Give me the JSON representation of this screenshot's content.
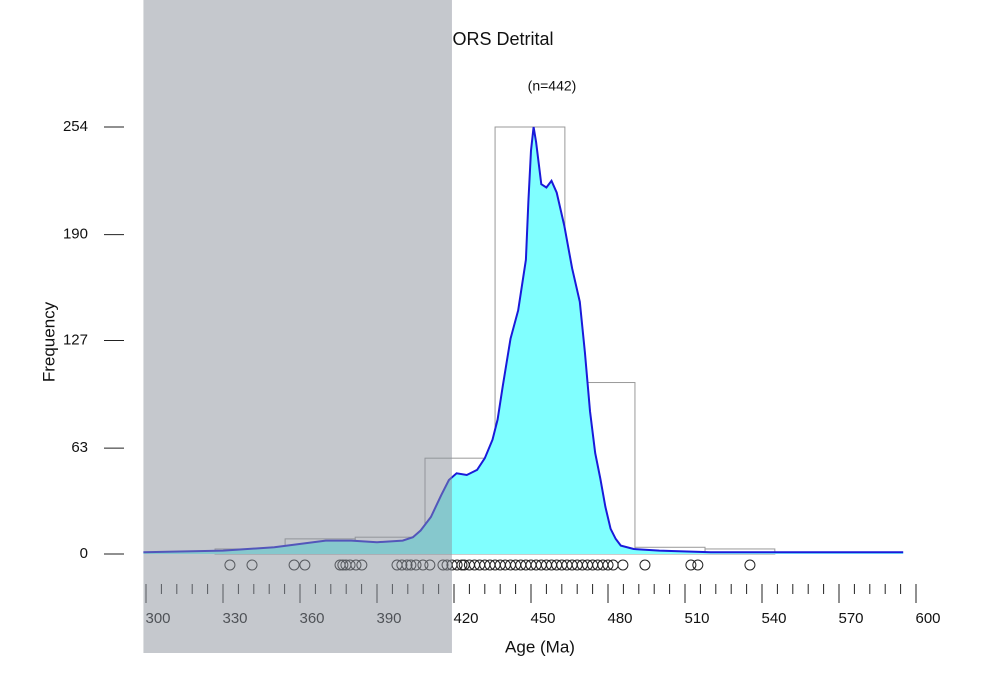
{
  "chart_data": {
    "type": "histogram",
    "title": "ORS Detrital",
    "subtitle": "(n=442)",
    "x_label": "Age (Ma)",
    "y_label": "Frequency",
    "bins": [
      326.9,
      354.2,
      381.5,
      408.7,
      436.0,
      463.2,
      490.5,
      517.8,
      545.0
    ],
    "values": [
      3,
      9,
      10,
      57,
      254,
      102,
      4,
      3
    ],
    "bar_color": "#999999",
    "density": {
      "name": "KDE",
      "fill": "#80ffff",
      "color": "#1a1ad9",
      "x": [
        299,
        330,
        350,
        370,
        380,
        390,
        400,
        404,
        407,
        411,
        415,
        418,
        421,
        425,
        429,
        432,
        435,
        437,
        439,
        442,
        445,
        448,
        449,
        450,
        451,
        452,
        454,
        456,
        458,
        460,
        463,
        466,
        469,
        471,
        473,
        475,
        477,
        479,
        481,
        483,
        485,
        490,
        500,
        520,
        560,
        595
      ],
      "values": [
        1,
        2,
        4,
        8,
        8,
        7,
        8,
        10,
        14,
        22,
        35,
        44,
        48,
        47,
        50,
        57,
        68,
        80,
        100,
        128,
        145,
        175,
        210,
        240,
        254,
        245,
        220,
        218,
        222,
        215,
        195,
        170,
        150,
        120,
        85,
        60,
        45,
        28,
        15,
        9,
        5,
        3,
        2,
        1,
        1,
        1
      ]
    },
    "rug": [
      332.7,
      341.3,
      357.7,
      361.9,
      375.6,
      376.7,
      377.9,
      379.5,
      381.8,
      384.1,
      397.8,
      399.7,
      401.7,
      403.2,
      405.2,
      407.9,
      410.6,
      415.7,
      417.3,
      419.2,
      421.2,
      423.1,
      424,
      426,
      428,
      430,
      432,
      434,
      436,
      438,
      440,
      442,
      444,
      446,
      448,
      450,
      452,
      454,
      456,
      458,
      460,
      462,
      464,
      466,
      468,
      470,
      472,
      474,
      476,
      478,
      480,
      482,
      485.8,
      494.4,
      512.3,
      515.0,
      535.3
    ],
    "shaded_range": [
      299,
      419.2
    ],
    "xlim": [
      300,
      600
    ],
    "ylim": [
      0,
      254
    ],
    "xticks": [
      300,
      330,
      360,
      390,
      420,
      450,
      480,
      510,
      540,
      570,
      600
    ],
    "xminor_ticks": [
      306,
      312,
      318,
      324,
      336,
      342,
      348,
      354,
      366,
      372,
      378,
      384,
      396,
      402,
      408,
      414,
      426,
      432,
      438,
      444,
      456,
      462,
      468,
      474,
      486,
      492,
      498,
      504,
      516,
      522,
      528,
      534,
      546,
      552,
      558,
      564,
      576,
      582,
      588,
      594
    ],
    "yticks": [
      0,
      63,
      127,
      190,
      254
    ]
  }
}
